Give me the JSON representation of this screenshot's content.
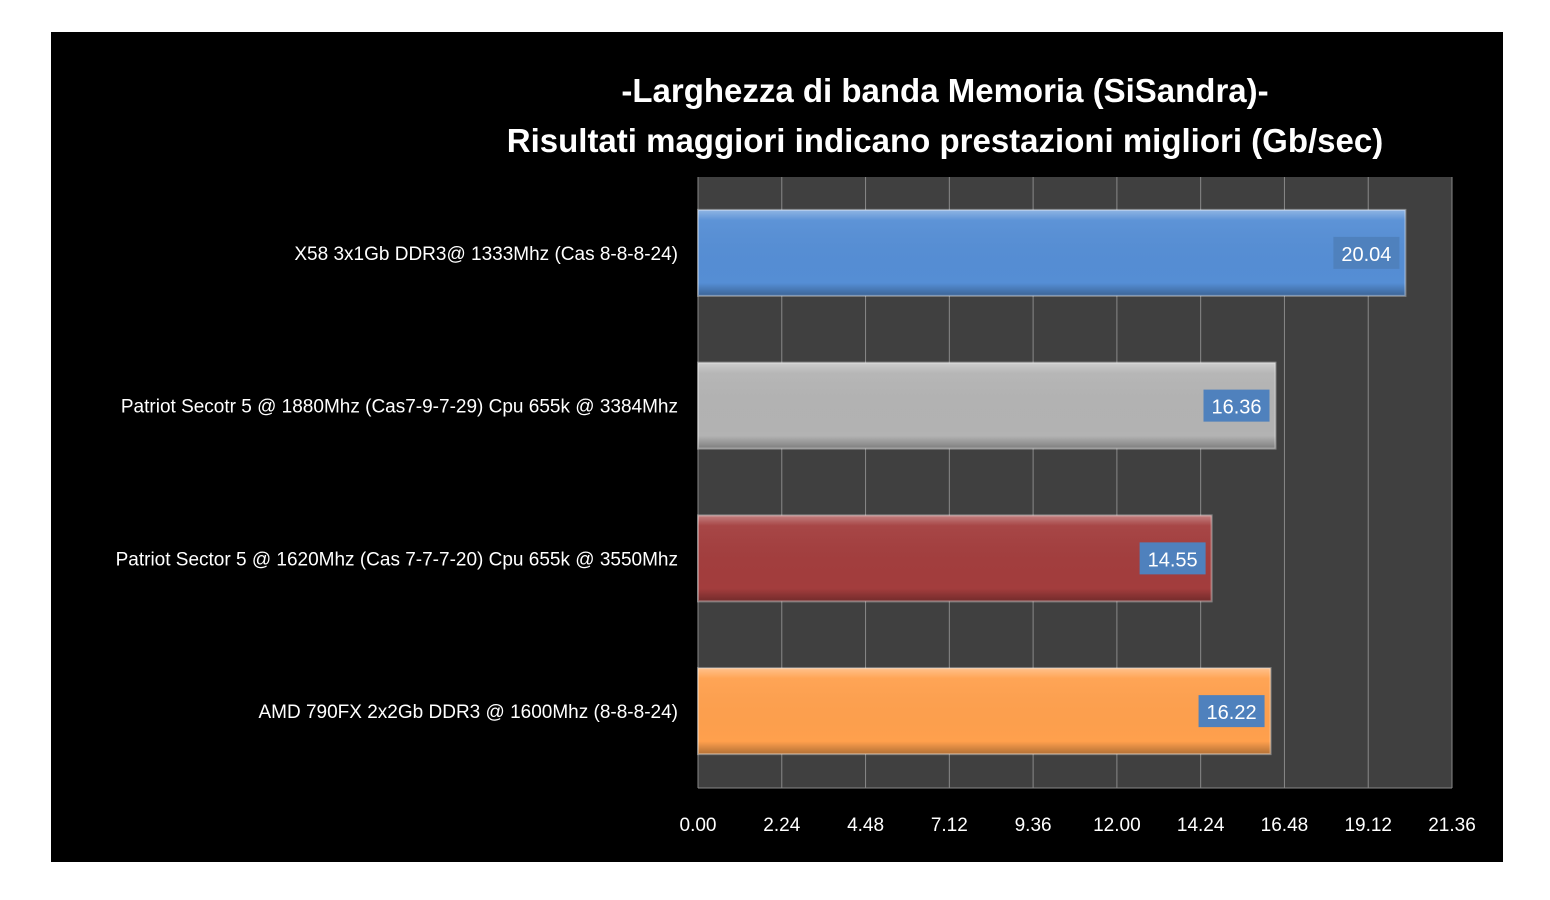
{
  "chart_data": {
    "type": "bar",
    "orientation": "horizontal",
    "title": "-Larghezza di banda Memoria (SiSandra)-",
    "subtitle": "Risultati maggiori indicano prestazioni migliori (Gb/sec)",
    "categories": [
      "X58 3x1Gb DDR3@ 1333Mhz (Cas 8-8-8-24)",
      "Patriot Secotr 5 @ 1880Mhz (Cas7-9-7-29) Cpu 655k @ 3384Mhz",
      "Patriot Sector 5 @ 1620Mhz (Cas 7-7-7-20) Cpu 655k @ 3550Mhz",
      "AMD 790FX 2x2Gb DDR3 @ 1600Mhz (8-8-8-24)"
    ],
    "values": [
      20.04,
      16.36,
      14.55,
      16.22
    ],
    "data_labels": [
      "20.04",
      "16.36",
      "14.55",
      "16.22"
    ],
    "bar_colors": [
      "#558ed5",
      "#b3b3b3",
      "#a33d3d",
      "#ffa04d"
    ],
    "label_box_color": "#4f81bd",
    "xlim": [
      0,
      21.36
    ],
    "x_ticks": [
      "0.00",
      "2.24",
      "4.48",
      "7.12",
      "9.36",
      "12.00",
      "14.24",
      "16.48",
      "19.12",
      "21.36"
    ],
    "grid": true,
    "plot_background": "#404040",
    "background": "#000000",
    "legend": "none"
  }
}
